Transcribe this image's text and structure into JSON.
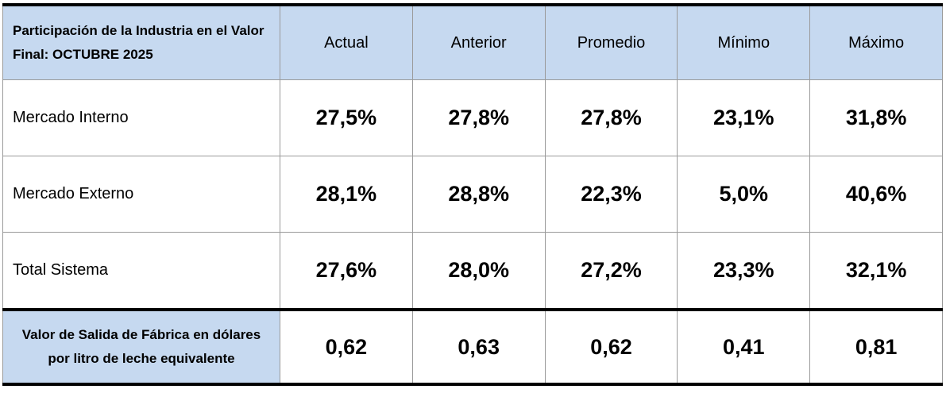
{
  "table": {
    "header": [
      "Participación de la Industria en el Valor Final: OCTUBRE 2025",
      "Actual",
      "Anterior",
      "Promedio",
      "Mínimo",
      "Máximo"
    ],
    "rows": [
      [
        "Mercado Interno",
        "27,5%",
        "27,8%",
        "27,8%",
        "23,1%",
        "31,8%"
      ],
      [
        "Mercado Externo",
        "28,1%",
        "28,8%",
        "22,3%",
        "5,0%",
        "40,6%"
      ],
      [
        "Total Sistema",
        "27,6%",
        "28,0%",
        "27,2%",
        "23,3%",
        "32,1%"
      ]
    ],
    "footer": [
      "Valor de Salida de Fábrica en dólares por litro de leche equivalente",
      "0,62",
      "0,63",
      "0,62",
      "0,41",
      "0,81"
    ]
  }
}
